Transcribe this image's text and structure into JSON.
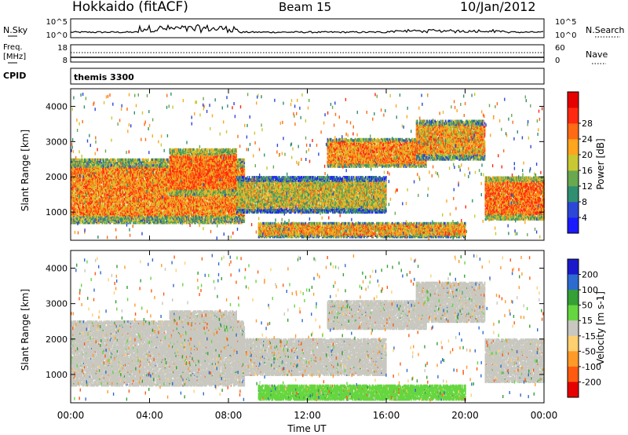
{
  "header": {
    "station": "Hokkaido (fitACF)",
    "beam": "Beam 15",
    "date": "10/Jan/2012"
  },
  "strip_labels": {
    "nsky": "N.Sky",
    "nsearch": "N.Search",
    "freq_line1": "Freq.",
    "freq_line2": "[MHz]",
    "nave": "Nave",
    "cpid": "CPID",
    "cpid_value": "themis 3300",
    "nsky_ticks": [
      "10^5",
      "10^0"
    ],
    "nsearch_ticks": [
      "10^5",
      "10^0"
    ],
    "freq_ticks": [
      "18",
      "8"
    ],
    "nave_ticks": [
      "60",
      "0"
    ]
  },
  "chart_data": [
    {
      "type": "heatmap",
      "panel": "power",
      "ylabel": "Slant Range [km]",
      "xlabel": "Time UT",
      "xlim": [
        0,
        24
      ],
      "ylim": [
        200,
        4500
      ],
      "x_ticks": [
        "00:00",
        "04:00",
        "08:00",
        "12:00",
        "16:00",
        "20:00",
        "00:00"
      ],
      "y_ticks": [
        1000,
        2000,
        3000,
        4000
      ],
      "colorbar": {
        "label": "Power [dB]",
        "ticks": [
          4,
          8,
          12,
          16,
          20,
          24,
          28
        ],
        "colors": [
          "#1a1aff",
          "#2c46d8",
          "#2f8f70",
          "#69a84f",
          "#c8c832",
          "#ffa51e",
          "#ff6a14",
          "#ff2810",
          "#e60000"
        ]
      },
      "regions": [
        {
          "t0": 0.0,
          "t1": 8.8,
          "r0": 700,
          "r1": 2500,
          "level": 24
        },
        {
          "t0": 5.0,
          "t1": 8.4,
          "r0": 1500,
          "r1": 2800,
          "level": 26
        },
        {
          "t0": 8.4,
          "t1": 16.0,
          "r0": 1000,
          "r1": 2000,
          "level": 18
        },
        {
          "t0": 13.0,
          "t1": 18.0,
          "r0": 2300,
          "r1": 3100,
          "level": 24
        },
        {
          "t0": 17.5,
          "t1": 21.0,
          "r0": 2500,
          "r1": 3600,
          "level": 22
        },
        {
          "t0": 21.0,
          "t1": 24.0,
          "r0": 800,
          "r1": 2000,
          "level": 26
        },
        {
          "t0": 9.5,
          "t1": 20.0,
          "r0": 300,
          "r1": 700,
          "level": 22
        }
      ]
    },
    {
      "type": "heatmap",
      "panel": "velocity",
      "ylabel": "Slant Range [km]",
      "xlabel": "Time UT",
      "xlim": [
        0,
        24
      ],
      "ylim": [
        200,
        4500
      ],
      "x_ticks": [
        "00:00",
        "04:00",
        "08:00",
        "12:00",
        "16:00",
        "20:00",
        "00:00"
      ],
      "y_ticks": [
        1000,
        2000,
        3000,
        4000
      ],
      "colorbar": {
        "label": "Velocity [m s-1]",
        "ticks": [
          200,
          100,
          50,
          15,
          -15,
          -50,
          -100,
          -200
        ],
        "colors": [
          "#1a1acc",
          "#2d6bd0",
          "#35a035",
          "#66d640",
          "#c8c8c0",
          "#ffd070",
          "#ff9a28",
          "#ff5a10",
          "#e60000"
        ]
      },
      "regions": [
        {
          "t0": 0.0,
          "t1": 8.8,
          "r0": 700,
          "r1": 2500,
          "level": 0
        },
        {
          "t0": 5.0,
          "t1": 8.4,
          "r0": 1500,
          "r1": 2800,
          "level": 0
        },
        {
          "t0": 8.4,
          "t1": 16.0,
          "r0": 1000,
          "r1": 2000,
          "level": 0
        },
        {
          "t0": 13.0,
          "t1": 18.0,
          "r0": 2300,
          "r1": 3100,
          "level": 0
        },
        {
          "t0": 17.5,
          "t1": 21.0,
          "r0": 2500,
          "r1": 3600,
          "level": 0
        },
        {
          "t0": 21.0,
          "t1": 24.0,
          "r0": 800,
          "r1": 2000,
          "level": 0
        },
        {
          "t0": 9.5,
          "t1": 20.0,
          "r0": 300,
          "r1": 700,
          "level": 30
        }
      ]
    }
  ]
}
